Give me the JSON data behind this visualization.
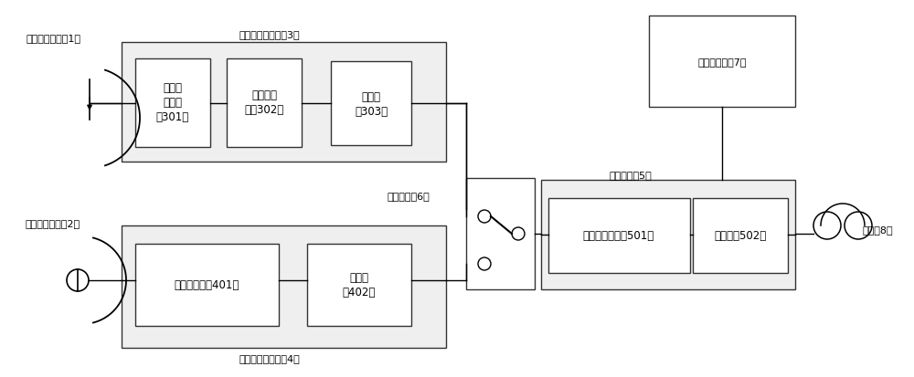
{
  "bg_color": "#ffffff",
  "fig_width": 10.0,
  "fig_height": 4.14,
  "labels": {
    "antenna_label": "指向性天线罩（1）",
    "ultrasound_label": "超声波集音罩（2）",
    "em_circuit_label": "电磁波接收回路（3）",
    "us_circuit_label": "超声波接收回路（4）",
    "process_label": "处理电路（5）",
    "switch_label": "切换开关（6）",
    "spectrum_label": "频谱显示器（7）",
    "earphone_label": "耳机（8）",
    "box301": "接受调\n谐回路\n（301）",
    "box302": "高频放大\n器（302）",
    "box303": "检波器\n（303）",
    "box401": "前置放大器（401）",
    "box402": "降频器\n（402）",
    "box501": "灵敏度调节器（501）",
    "box502": "放大器（502）"
  }
}
